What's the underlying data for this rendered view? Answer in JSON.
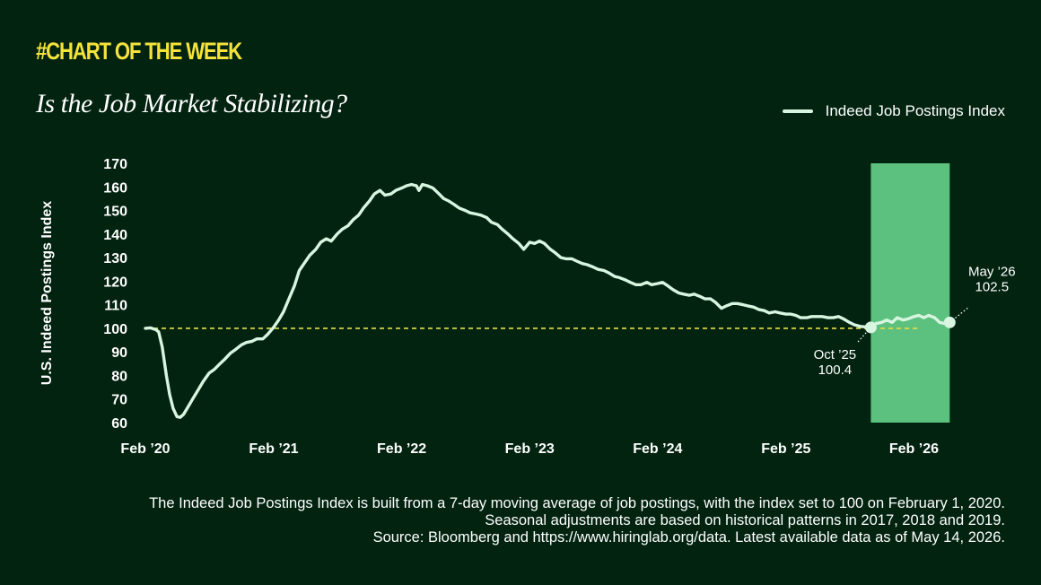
{
  "header": {
    "kicker": "#CHART OF THE WEEK",
    "title": "Is the Job Market Stabilizing?"
  },
  "legend": {
    "label": "Indeed Job Postings Index"
  },
  "footnote": {
    "lines": [
      "The Indeed Job Postings Index is built from a 7-day moving average of job postings, with the index set to 100 on February 1, 2020.",
      "Seasonal adjustments are based on historical patterns in 2017, 2018 and 2019.",
      "Source: Bloomberg and https://www.hiringlab.org/data. Latest available data as of May 14, 2026."
    ]
  },
  "colors": {
    "background": "#022310",
    "line": "#d8f5e0",
    "kicker": "#f5e33b",
    "baseline": "#e6e045",
    "highlight": "#5cc07f"
  },
  "chart_data": {
    "type": "line",
    "ylabel": "U.S. Indeed Postings Index",
    "xlabel": "",
    "ylim": [
      60,
      170
    ],
    "yticks": [
      60,
      70,
      80,
      90,
      100,
      110,
      120,
      130,
      140,
      150,
      160,
      170
    ],
    "xticks": [
      {
        "date": "2020-02-01",
        "label": "Feb ’20"
      },
      {
        "date": "2021-02-01",
        "label": "Feb ’21"
      },
      {
        "date": "2022-02-01",
        "label": "Feb ’22"
      },
      {
        "date": "2023-02-01",
        "label": "Feb ’23"
      },
      {
        "date": "2024-02-01",
        "label": "Feb ’24"
      },
      {
        "date": "2025-02-01",
        "label": "Feb ’25"
      },
      {
        "date": "2026-02-01",
        "label": "Feb ’26"
      }
    ],
    "xlim": [
      "2020-02-01",
      "2026-06-30"
    ],
    "reference_line": {
      "y": 100,
      "style": "dashed"
    },
    "highlight_region": {
      "from": "2025-10-01",
      "to": "2026-05-14"
    },
    "series": [
      {
        "name": "Indeed Job Postings Index",
        "points": [
          [
            "2020-02-01",
            100.0
          ],
          [
            "2020-02-15",
            100.2
          ],
          [
            "2020-03-01",
            99.5
          ],
          [
            "2020-03-10",
            98.5
          ],
          [
            "2020-03-20",
            92
          ],
          [
            "2020-04-01",
            80
          ],
          [
            "2020-04-10",
            72
          ],
          [
            "2020-04-20",
            66
          ],
          [
            "2020-05-01",
            62.5
          ],
          [
            "2020-05-10",
            62.2
          ],
          [
            "2020-05-20",
            63.5
          ],
          [
            "2020-06-01",
            66.5
          ],
          [
            "2020-06-15",
            70
          ],
          [
            "2020-07-01",
            74
          ],
          [
            "2020-07-15",
            77.5
          ],
          [
            "2020-08-01",
            81
          ],
          [
            "2020-08-15",
            82.5
          ],
          [
            "2020-09-01",
            85
          ],
          [
            "2020-09-15",
            87
          ],
          [
            "2020-10-01",
            89.5
          ],
          [
            "2020-10-15",
            91
          ],
          [
            "2020-11-01",
            93
          ],
          [
            "2020-11-15",
            94
          ],
          [
            "2020-12-01",
            94.5
          ],
          [
            "2020-12-15",
            95.5
          ],
          [
            "2021-01-01",
            95.5
          ],
          [
            "2021-01-15",
            97.5
          ],
          [
            "2021-02-01",
            100.5
          ],
          [
            "2021-02-15",
            103.5
          ],
          [
            "2021-03-01",
            107
          ],
          [
            "2021-03-15",
            112
          ],
          [
            "2021-04-01",
            118
          ],
          [
            "2021-04-15",
            124.5
          ],
          [
            "2021-05-01",
            128
          ],
          [
            "2021-05-15",
            131
          ],
          [
            "2021-06-01",
            133.5
          ],
          [
            "2021-06-15",
            136.5
          ],
          [
            "2021-07-01",
            138
          ],
          [
            "2021-07-15",
            137
          ],
          [
            "2021-08-01",
            140
          ],
          [
            "2021-08-15",
            142
          ],
          [
            "2021-09-01",
            143.5
          ],
          [
            "2021-09-15",
            146
          ],
          [
            "2021-10-01",
            148
          ],
          [
            "2021-10-15",
            151
          ],
          [
            "2021-11-01",
            154
          ],
          [
            "2021-11-15",
            157
          ],
          [
            "2021-12-01",
            158.5
          ],
          [
            "2021-12-15",
            156.5
          ],
          [
            "2022-01-01",
            157
          ],
          [
            "2022-01-15",
            158.5
          ],
          [
            "2022-02-01",
            159.5
          ],
          [
            "2022-02-15",
            160.5
          ],
          [
            "2022-03-01",
            161
          ],
          [
            "2022-03-15",
            160.5
          ],
          [
            "2022-03-22",
            158.5
          ],
          [
            "2022-04-01",
            161
          ],
          [
            "2022-04-15",
            160.5
          ],
          [
            "2022-05-01",
            159.5
          ],
          [
            "2022-05-15",
            157.5
          ],
          [
            "2022-06-01",
            155
          ],
          [
            "2022-06-15",
            154
          ],
          [
            "2022-07-01",
            152.5
          ],
          [
            "2022-07-15",
            151
          ],
          [
            "2022-08-01",
            150
          ],
          [
            "2022-08-15",
            149
          ],
          [
            "2022-09-01",
            148.5
          ],
          [
            "2022-09-15",
            148
          ],
          [
            "2022-10-01",
            147
          ],
          [
            "2022-10-15",
            145
          ],
          [
            "2022-11-01",
            144
          ],
          [
            "2022-11-15",
            142
          ],
          [
            "2022-12-01",
            140
          ],
          [
            "2022-12-15",
            138
          ],
          [
            "2023-01-01",
            136
          ],
          [
            "2023-01-15",
            133.5
          ],
          [
            "2023-02-01",
            136.5
          ],
          [
            "2023-02-15",
            136
          ],
          [
            "2023-03-01",
            137
          ],
          [
            "2023-03-15",
            136
          ],
          [
            "2023-04-01",
            133.5
          ],
          [
            "2023-04-15",
            132
          ],
          [
            "2023-05-01",
            130
          ],
          [
            "2023-05-15",
            129.5
          ],
          [
            "2023-06-01",
            129.5
          ],
          [
            "2023-06-15",
            128.5
          ],
          [
            "2023-07-01",
            127.5
          ],
          [
            "2023-07-15",
            127
          ],
          [
            "2023-08-01",
            126
          ],
          [
            "2023-08-15",
            125
          ],
          [
            "2023-09-01",
            124.5
          ],
          [
            "2023-09-15",
            123.5
          ],
          [
            "2023-10-01",
            122
          ],
          [
            "2023-10-15",
            121.5
          ],
          [
            "2023-11-01",
            120.5
          ],
          [
            "2023-11-15",
            119.5
          ],
          [
            "2023-12-01",
            118.5
          ],
          [
            "2023-12-15",
            118.5
          ],
          [
            "2024-01-01",
            119.5
          ],
          [
            "2024-01-15",
            118.5
          ],
          [
            "2024-02-01",
            119
          ],
          [
            "2024-02-15",
            119.5
          ],
          [
            "2024-03-01",
            118
          ],
          [
            "2024-03-15",
            116.5
          ],
          [
            "2024-04-01",
            115
          ],
          [
            "2024-04-15",
            114.5
          ],
          [
            "2024-05-01",
            114
          ],
          [
            "2024-05-15",
            114.5
          ],
          [
            "2024-06-01",
            113.5
          ],
          [
            "2024-06-15",
            112.5
          ],
          [
            "2024-07-01",
            112.5
          ],
          [
            "2024-07-15",
            111
          ],
          [
            "2024-08-01",
            108.5
          ],
          [
            "2024-08-15",
            109.5
          ],
          [
            "2024-09-01",
            110.5
          ],
          [
            "2024-09-15",
            110.5
          ],
          [
            "2024-10-01",
            110
          ],
          [
            "2024-10-15",
            109.5
          ],
          [
            "2024-11-01",
            109
          ],
          [
            "2024-11-15",
            108
          ],
          [
            "2024-12-01",
            107.5
          ],
          [
            "2024-12-15",
            106.5
          ],
          [
            "2025-01-01",
            107
          ],
          [
            "2025-01-15",
            106.5
          ],
          [
            "2025-02-01",
            106
          ],
          [
            "2025-02-15",
            106
          ],
          [
            "2025-03-01",
            105.5
          ],
          [
            "2025-03-15",
            104.5
          ],
          [
            "2025-04-01",
            104.5
          ],
          [
            "2025-04-15",
            105
          ],
          [
            "2025-05-01",
            105
          ],
          [
            "2025-05-15",
            105
          ],
          [
            "2025-06-01",
            104.5
          ],
          [
            "2025-06-15",
            104.5
          ],
          [
            "2025-07-01",
            105
          ],
          [
            "2025-07-15",
            104
          ],
          [
            "2025-08-01",
            102.5
          ],
          [
            "2025-08-15",
            101.5
          ],
          [
            "2025-09-01",
            100.8
          ],
          [
            "2025-09-15",
            100.6
          ],
          [
            "2025-10-01",
            100.4
          ],
          [
            "2025-10-15",
            102
          ],
          [
            "2025-11-01",
            102.5
          ],
          [
            "2025-11-15",
            103.5
          ],
          [
            "2025-12-01",
            102.5
          ],
          [
            "2025-12-15",
            104.5
          ],
          [
            "2026-01-01",
            103.5
          ],
          [
            "2026-01-15",
            104
          ],
          [
            "2026-02-01",
            105
          ],
          [
            "2026-02-15",
            105.5
          ],
          [
            "2026-03-01",
            104.5
          ],
          [
            "2026-03-15",
            105.5
          ],
          [
            "2026-04-01",
            104.5
          ],
          [
            "2026-04-15",
            102.5
          ],
          [
            "2026-05-01",
            102
          ],
          [
            "2026-05-14",
            102.5
          ]
        ]
      }
    ],
    "annotations": [
      {
        "date": "2025-10-01",
        "value": 100.4,
        "lines": [
          "Oct ’25",
          "100.4"
        ],
        "side": "below-left"
      },
      {
        "date": "2026-05-14",
        "value": 102.5,
        "lines": [
          "May ’26",
          "102.5"
        ],
        "side": "above-right"
      }
    ]
  }
}
